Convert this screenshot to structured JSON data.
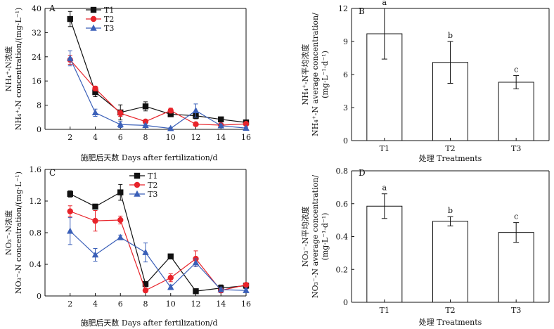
{
  "chart_data": [
    {
      "panel": "A",
      "type": "line",
      "xlabel": "施肥后天数 Days after fertilization/d",
      "ylabel_lines": [
        "NH₄⁺-N浓度",
        "NH₄⁺-N concentration/(mg·L⁻¹)"
      ],
      "x": [
        2,
        4,
        6,
        8,
        10,
        12,
        14,
        16
      ],
      "xticks": [
        "2",
        "4",
        "6",
        "8",
        "10",
        "12",
        "14",
        "16"
      ],
      "xlim": [
        0,
        16
      ],
      "ylim": [
        0,
        40
      ],
      "yticks": [
        0,
        8,
        16,
        24,
        32,
        40
      ],
      "ytick_labels": [
        "0",
        "8",
        "16",
        "24",
        "32",
        "40"
      ],
      "series": [
        {
          "name": "T1",
          "color": "#111111",
          "marker": "square",
          "values": [
            36.5,
            12.3,
            5.6,
            7.6,
            5.0,
            4.5,
            3.3,
            2.3
          ],
          "errors": [
            2.5,
            1.5,
            2.5,
            1.5,
            0.8,
            1.0,
            0.5,
            0.5
          ]
        },
        {
          "name": "T2",
          "color": "#e8232a",
          "marker": "circle",
          "values": [
            23.0,
            13.5,
            5.3,
            2.6,
            6.2,
            1.7,
            1.4,
            1.8
          ],
          "errors": [
            1.5,
            0.8,
            1.0,
            0.6,
            0.8,
            0.4,
            0.4,
            0.4
          ]
        },
        {
          "name": "T3",
          "color": "#3a5fb8",
          "marker": "triangle",
          "values": [
            23.5,
            5.5,
            1.6,
            1.3,
            0.3,
            6.2,
            1.2,
            0.4
          ],
          "errors": [
            2.5,
            1.2,
            1.0,
            0.5,
            0.3,
            2.2,
            0.5,
            0.3
          ]
        }
      ]
    },
    {
      "panel": "B",
      "type": "bar",
      "xlabel": "处理 Treatments",
      "ylabel_lines": [
        "NH₄⁺-N平均浓度",
        "NH₄⁺-N average concentration/",
        "(mg·L⁻¹·d⁻¹)"
      ],
      "categories": [
        "T1",
        "T2",
        "T3"
      ],
      "values": [
        9.7,
        7.1,
        5.3
      ],
      "errors": [
        2.3,
        1.9,
        0.6
      ],
      "sig_letters": [
        "a",
        "b",
        "c"
      ],
      "ylim": [
        0,
        12
      ],
      "yticks": [
        0,
        3,
        6,
        9,
        12
      ],
      "ytick_labels": [
        "0",
        "3",
        "6",
        "9",
        "12"
      ]
    },
    {
      "panel": "C",
      "type": "line",
      "xlabel": "施肥后天数 Days after fertilization/d",
      "ylabel_lines": [
        "NO₃⁻-N浓度",
        "NO₃⁻-N concentration/(mg·L⁻¹)"
      ],
      "x": [
        2,
        4,
        6,
        8,
        10,
        12,
        14,
        16
      ],
      "xticks": [
        "2",
        "4",
        "6",
        "8",
        "10",
        "12",
        "14",
        "16"
      ],
      "xlim": [
        0,
        16
      ],
      "ylim": [
        0,
        1.6
      ],
      "yticks": [
        0,
        0.4,
        0.8,
        1.2,
        1.6
      ],
      "ytick_labels": [
        "0",
        "0.4",
        "0.8",
        "1.2",
        "1.6"
      ],
      "series": [
        {
          "name": "T1",
          "color": "#111111",
          "marker": "square",
          "values": [
            1.29,
            1.13,
            1.31,
            0.15,
            0.5,
            0.06,
            0.1,
            0.13
          ],
          "errors": [
            0.04,
            0.02,
            0.1,
            0.03,
            0.02,
            0.02,
            0.04,
            0.02
          ]
        },
        {
          "name": "T2",
          "color": "#e8232a",
          "marker": "circle",
          "values": [
            1.07,
            0.95,
            0.96,
            0.07,
            0.23,
            0.47,
            0.07,
            0.14
          ],
          "errors": [
            0.07,
            0.13,
            0.05,
            0.02,
            0.05,
            0.1,
            0.03,
            0.02
          ]
        },
        {
          "name": "T3",
          "color": "#3a5fb8",
          "marker": "triangle",
          "values": [
            0.82,
            0.52,
            0.74,
            0.55,
            0.11,
            0.42,
            0.08,
            0.07
          ],
          "errors": [
            0.17,
            0.08,
            0.03,
            0.12,
            0.03,
            0.05,
            0.02,
            0.02
          ]
        }
      ]
    },
    {
      "panel": "D",
      "type": "bar",
      "xlabel": "处理 Treatments",
      "ylabel_lines": [
        "NO₃⁻-N平均浓度",
        "NO₃⁻-N average concentration/",
        "(mg·L⁻¹·d⁻¹)"
      ],
      "categories": [
        "T1",
        "T2",
        "T3"
      ],
      "values": [
        0.585,
        0.493,
        0.425
      ],
      "errors": [
        0.075,
        0.028,
        0.06
      ],
      "sig_letters": [
        "a",
        "b",
        "c"
      ],
      "ylim": [
        0,
        0.8
      ],
      "yticks": [
        0,
        0.2,
        0.4,
        0.6,
        0.8
      ],
      "ytick_labels": [
        "0",
        "0.2",
        "0.4",
        "0.6",
        "0.8"
      ]
    }
  ]
}
